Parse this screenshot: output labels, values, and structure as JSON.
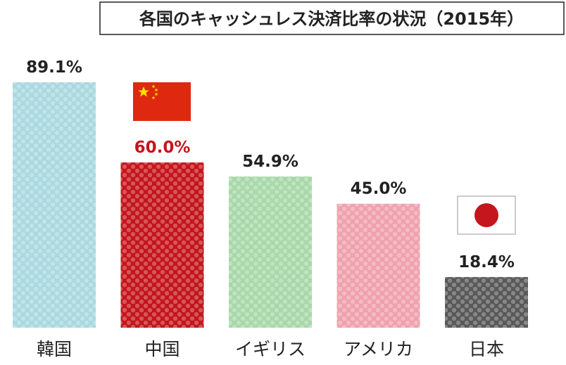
{
  "chart_data": {
    "type": "bar",
    "title": "各国のキャッシュレス決済比率の状況（2015年）",
    "categories": [
      "韓国",
      "中国",
      "イギリス",
      "アメリカ",
      "日本"
    ],
    "values": [
      89.1,
      60.0,
      54.9,
      45.0,
      18.4
    ],
    "value_labels": [
      "89.1%",
      "60.0%",
      "54.9%",
      "45.0%",
      "18.4%"
    ],
    "xlabel": "",
    "ylabel": "",
    "ylim": [
      0,
      100
    ],
    "grid": false,
    "legend": "none",
    "bar_colors": [
      "#a9d8df",
      "#c4161c",
      "#a7d8a9",
      "#efa1ad",
      "#595959"
    ],
    "value_label_colors": [
      "#222222",
      "#c4161c",
      "#222222",
      "#222222",
      "#222222"
    ],
    "flags": [
      {
        "category": "中国",
        "icon": "china-flag-icon"
      },
      {
        "category": "日本",
        "icon": "japan-flag-icon"
      }
    ],
    "colors": {
      "china_flag_red": "#de2910",
      "china_flag_star": "#ffde00",
      "japan_flag_red": "#c4161c",
      "text": "#222222"
    }
  }
}
